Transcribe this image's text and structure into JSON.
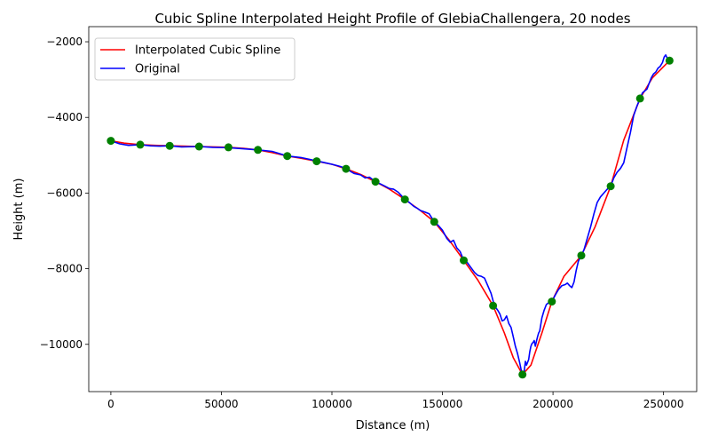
{
  "chart_data": {
    "type": "line",
    "title": "Cubic Spline Interpolated Height Profile of GlebiaChallengera, 20 nodes",
    "xlabel": "Distance (m)",
    "ylabel": "Height (m)",
    "xlim": [
      -10000,
      265000
    ],
    "ylim": [
      -11250,
      -1600
    ],
    "xticks": [
      0,
      50000,
      100000,
      150000,
      200000,
      250000
    ],
    "yticks": [
      -10000,
      -8000,
      -6000,
      -4000,
      -2000
    ],
    "legend_position": "upper-left",
    "grid": false,
    "legend": [
      {
        "label": "Interpolated Cubic Spline",
        "color": "#ff0000"
      },
      {
        "label": "Original",
        "color": "#0000ff"
      }
    ],
    "series": [
      {
        "name": "Interpolated Cubic Spline",
        "color": "#ff0000",
        "x": [
          0,
          6000,
          13300,
          20000,
          26600,
          33000,
          39900,
          46000,
          53200,
          60000,
          66500,
          73000,
          79800,
          86000,
          93100,
          100000,
          106400,
          113000,
          119700,
          126000,
          133000,
          140000,
          146300,
          153000,
          159600,
          166000,
          172900,
          178000,
          182000,
          186200,
          190000,
          195000,
          199500,
          205000,
          212800,
          219000,
          226100,
          232000,
          239400,
          245000,
          252700
        ],
        "y": [
          -4620,
          -4680,
          -4720,
          -4740,
          -4750,
          -4760,
          -4770,
          -4780,
          -4790,
          -4820,
          -4860,
          -4930,
          -5020,
          -5080,
          -5160,
          -5240,
          -5360,
          -5510,
          -5700,
          -5900,
          -6170,
          -6460,
          -6760,
          -7240,
          -7780,
          -8300,
          -8980,
          -9700,
          -10350,
          -10800,
          -10550,
          -9700,
          -8870,
          -8200,
          -7650,
          -6900,
          -5820,
          -4600,
          -3500,
          -2950,
          -2500
        ]
      },
      {
        "name": "Original",
        "color": "#0000ff",
        "x": [
          0,
          4000,
          8000,
          13300,
          18000,
          22000,
          26600,
          32000,
          39900,
          46000,
          53200,
          60000,
          66500,
          73000,
          79800,
          86000,
          93100,
          97000,
          100000,
          104000,
          106400,
          110000,
          113000,
          115000,
          117000,
          119700,
          122000,
          124000,
          126000,
          128000,
          130000,
          133000,
          135000,
          137000,
          138500,
          140000,
          142000,
          144000,
          146300,
          148000,
          150000,
          152000,
          153500,
          155000,
          156500,
          158000,
          159600,
          161000,
          163000,
          164500,
          166000,
          167500,
          169000,
          170500,
          172000,
          173500,
          175000,
          176000,
          177000,
          178000,
          179000,
          180000,
          181000,
          182000,
          183000,
          184000,
          185000,
          185500,
          186200,
          187000,
          187500,
          188000,
          188500,
          189000,
          189500,
          190000,
          190500,
          191000,
          191500,
          192000,
          192500,
          193000,
          193500,
          194000,
          195000,
          196000,
          197000,
          198000,
          199500,
          201000,
          202500,
          204000,
          205500,
          206500,
          207500,
          208500,
          209500,
          210500,
          211500,
          212800,
          214000,
          215500,
          217000,
          218500,
          220000,
          221500,
          223000,
          224500,
          226100,
          227500,
          229000,
          230500,
          232000,
          233500,
          235000,
          236500,
          238000,
          239400,
          240500,
          241500,
          242500,
          243500,
          244500,
          245500,
          246500,
          247500,
          248500,
          249500,
          250300,
          251000,
          251800,
          252700
        ],
        "y": [
          -4620,
          -4700,
          -4740,
          -4720,
          -4750,
          -4760,
          -4750,
          -4780,
          -4770,
          -4790,
          -4800,
          -4830,
          -4860,
          -4900,
          -5020,
          -5060,
          -5150,
          -5200,
          -5240,
          -5300,
          -5360,
          -5480,
          -5520,
          -5600,
          -5580,
          -5700,
          -5760,
          -5820,
          -5880,
          -5900,
          -5980,
          -6170,
          -6250,
          -6350,
          -6400,
          -6460,
          -6500,
          -6550,
          -6760,
          -6850,
          -6980,
          -7200,
          -7300,
          -7250,
          -7450,
          -7550,
          -7780,
          -7820,
          -7980,
          -8100,
          -8180,
          -8200,
          -8250,
          -8450,
          -8650,
          -8980,
          -9100,
          -9200,
          -9380,
          -9350,
          -9250,
          -9450,
          -9550,
          -9800,
          -10050,
          -10250,
          -10500,
          -10650,
          -10800,
          -10700,
          -10450,
          -10550,
          -10480,
          -10400,
          -10200,
          -10050,
          -9980,
          -9950,
          -9900,
          -10050,
          -9920,
          -9800,
          -9700,
          -9650,
          -9300,
          -9100,
          -8950,
          -8900,
          -8870,
          -8700,
          -8550,
          -8450,
          -8420,
          -8380,
          -8450,
          -8500,
          -8350,
          -8050,
          -7800,
          -7650,
          -7500,
          -7200,
          -6900,
          -6550,
          -6250,
          -6100,
          -6000,
          -5900,
          -5820,
          -5600,
          -5450,
          -5350,
          -5200,
          -4800,
          -4400,
          -3950,
          -3700,
          -3500,
          -3350,
          -3300,
          -3250,
          -3100,
          -2950,
          -2850,
          -2800,
          -2700,
          -2650,
          -2550,
          -2400,
          -2350,
          -2450,
          -2500
        ]
      }
    ],
    "nodes": {
      "color": "#008000",
      "x": [
        0,
        13300,
        26600,
        39900,
        53200,
        66500,
        79800,
        93100,
        106400,
        119700,
        133000,
        146300,
        159600,
        172900,
        186200,
        199500,
        212800,
        226100,
        239400,
        252700
      ],
      "y": [
        -4620,
        -4720,
        -4750,
        -4770,
        -4790,
        -4860,
        -5020,
        -5160,
        -5360,
        -5700,
        -6170,
        -6760,
        -7780,
        -8980,
        -10800,
        -8870,
        -7650,
        -5820,
        -3500,
        -2500
      ]
    }
  }
}
